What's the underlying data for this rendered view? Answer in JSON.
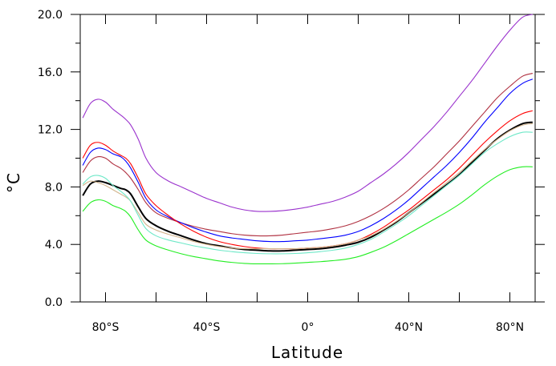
{
  "chart_data": {
    "type": "line",
    "xlabel": "Latitude",
    "ylabel": "°C",
    "xlim": [
      -90,
      90
    ],
    "ylim": [
      0,
      20
    ],
    "x_ticks": [
      {
        "value": -80,
        "label": "80°S"
      },
      {
        "value": -40,
        "label": "40°S"
      },
      {
        "value": 0,
        "label": "0°"
      },
      {
        "value": 40,
        "label": "40°N"
      },
      {
        "value": 80,
        "label": "80°N"
      }
    ],
    "y_ticks": [
      {
        "value": 0,
        "label": "0.0"
      },
      {
        "value": 4,
        "label": "4.0"
      },
      {
        "value": 8,
        "label": "8.0"
      },
      {
        "value": 12,
        "label": "12.0"
      },
      {
        "value": 16,
        "label": "16.0"
      },
      {
        "value": 20,
        "label": "20.0"
      }
    ],
    "grid": false,
    "x": [
      -89,
      -86,
      -83,
      -80,
      -77,
      -74,
      -72,
      -70,
      -67,
      -64,
      -60,
      -55,
      -50,
      -45,
      -40,
      -35,
      -30,
      -25,
      -20,
      -15,
      -10,
      -5,
      0,
      5,
      10,
      15,
      20,
      25,
      30,
      35,
      40,
      45,
      50,
      55,
      60,
      65,
      70,
      75,
      80,
      85,
      89
    ],
    "series": [
      {
        "color": "#9a32cd",
        "values": [
          12.8,
          13.8,
          14.1,
          13.9,
          13.4,
          13.0,
          12.7,
          12.3,
          11.3,
          10.0,
          9.0,
          8.4,
          8.0,
          7.6,
          7.2,
          6.9,
          6.6,
          6.4,
          6.3,
          6.3,
          6.35,
          6.45,
          6.6,
          6.8,
          7.0,
          7.3,
          7.7,
          8.3,
          8.9,
          9.6,
          10.4,
          11.3,
          12.2,
          13.2,
          14.3,
          15.4,
          16.6,
          17.8,
          18.9,
          19.8,
          20.0
        ]
      },
      {
        "color": "#b03040",
        "values": [
          9.0,
          9.8,
          10.1,
          10.0,
          9.6,
          9.3,
          9.0,
          8.6,
          7.8,
          6.9,
          6.2,
          5.8,
          5.5,
          5.25,
          5.05,
          4.9,
          4.75,
          4.65,
          4.6,
          4.6,
          4.65,
          4.75,
          4.85,
          4.95,
          5.1,
          5.3,
          5.6,
          6.0,
          6.5,
          7.1,
          7.8,
          8.6,
          9.4,
          10.3,
          11.2,
          12.2,
          13.2,
          14.2,
          15.0,
          15.7,
          15.9
        ]
      },
      {
        "color": "#0000ff",
        "values": [
          9.5,
          10.4,
          10.7,
          10.6,
          10.3,
          10.1,
          9.8,
          9.3,
          8.3,
          7.2,
          6.4,
          5.9,
          5.5,
          5.15,
          4.85,
          4.6,
          4.45,
          4.35,
          4.25,
          4.2,
          4.2,
          4.25,
          4.3,
          4.4,
          4.5,
          4.65,
          4.9,
          5.3,
          5.8,
          6.4,
          7.1,
          7.9,
          8.7,
          9.5,
          10.4,
          11.4,
          12.5,
          13.5,
          14.5,
          15.2,
          15.5
        ]
      },
      {
        "color": "#ff0000",
        "values": [
          10.0,
          10.9,
          11.1,
          10.9,
          10.5,
          10.2,
          10.0,
          9.6,
          8.6,
          7.5,
          6.7,
          6.0,
          5.4,
          4.9,
          4.5,
          4.2,
          4.0,
          3.85,
          3.75,
          3.7,
          3.7,
          3.7,
          3.75,
          3.8,
          3.9,
          4.05,
          4.3,
          4.7,
          5.2,
          5.8,
          6.4,
          7.1,
          7.8,
          8.5,
          9.3,
          10.2,
          11.1,
          11.9,
          12.6,
          13.1,
          13.3
        ]
      },
      {
        "color": "#000000",
        "bold": true,
        "values": [
          7.4,
          8.2,
          8.4,
          8.3,
          8.1,
          7.9,
          7.8,
          7.5,
          6.6,
          5.8,
          5.3,
          4.9,
          4.6,
          4.3,
          4.05,
          3.9,
          3.75,
          3.65,
          3.6,
          3.55,
          3.55,
          3.6,
          3.65,
          3.7,
          3.8,
          3.95,
          4.15,
          4.5,
          5.0,
          5.55,
          6.2,
          6.85,
          7.5,
          8.15,
          8.85,
          9.7,
          10.55,
          11.35,
          11.95,
          12.4,
          12.5
        ]
      },
      {
        "color": "#d2b48c",
        "values": [
          8.1,
          8.4,
          8.3,
          8.1,
          7.8,
          7.5,
          7.3,
          7.0,
          6.2,
          5.4,
          5.0,
          4.7,
          4.45,
          4.2,
          4.0,
          3.85,
          3.75,
          3.7,
          3.7,
          3.7,
          3.7,
          3.7,
          3.75,
          3.8,
          3.9,
          4.05,
          4.3,
          4.6,
          5.05,
          5.6,
          6.2,
          6.9,
          7.6,
          8.3,
          9.0,
          9.8,
          10.6,
          11.3,
          11.9,
          12.3,
          12.4
        ]
      },
      {
        "color": "#6ee8c8",
        "values": [
          8.2,
          8.7,
          8.8,
          8.6,
          8.1,
          7.7,
          7.4,
          7.0,
          6.0,
          5.1,
          4.6,
          4.3,
          4.1,
          3.9,
          3.75,
          3.6,
          3.5,
          3.42,
          3.37,
          3.35,
          3.35,
          3.37,
          3.42,
          3.5,
          3.6,
          3.75,
          4.0,
          4.35,
          4.85,
          5.4,
          6.0,
          6.7,
          7.4,
          8.1,
          8.8,
          9.6,
          10.4,
          11.0,
          11.5,
          11.8,
          11.8
        ]
      },
      {
        "color": "#22ee22",
        "values": [
          6.3,
          6.9,
          7.1,
          7.0,
          6.7,
          6.5,
          6.3,
          5.9,
          5.0,
          4.3,
          3.9,
          3.6,
          3.35,
          3.15,
          3.0,
          2.85,
          2.75,
          2.68,
          2.65,
          2.65,
          2.66,
          2.7,
          2.75,
          2.8,
          2.87,
          2.97,
          3.15,
          3.45,
          3.8,
          4.25,
          4.75,
          5.25,
          5.75,
          6.25,
          6.8,
          7.45,
          8.15,
          8.75,
          9.2,
          9.4,
          9.4
        ]
      }
    ]
  }
}
